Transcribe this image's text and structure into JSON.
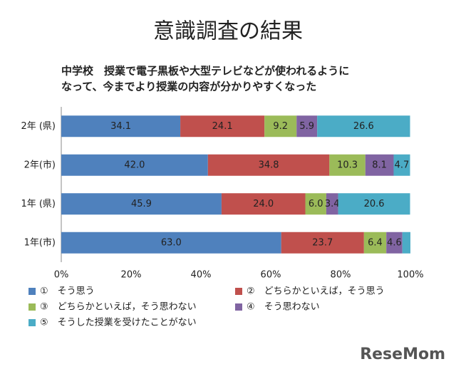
{
  "chart_data": {
    "type": "stacked-bar-horizontal",
    "title": "意識調査の結果",
    "subtitle": [
      "中学校　授業で電子黒板や大型テレビなどが使われるように",
      "なって、今までより授業の内容が分かりやすくなった"
    ],
    "categories": [
      "2年 (県)",
      "2年(市)",
      "1年 (県)",
      "1年(市)"
    ],
    "series": [
      {
        "name": "①　そう思う",
        "color": "#4f81bd",
        "values": [
          34.1,
          42.0,
          45.9,
          63.0
        ],
        "value_labels": [
          "34.1",
          "42.0",
          "45.9",
          "63.0"
        ]
      },
      {
        "name": "②　どちらかといえば，そう思う",
        "color": "#c0504d",
        "values": [
          24.1,
          34.8,
          24.0,
          23.7
        ],
        "value_labels": [
          "24.1",
          "34.8",
          "24.0",
          "23.7"
        ]
      },
      {
        "name": "③　どちらかといえば，そう思わない",
        "color": "#9bbb59",
        "values": [
          9.2,
          10.3,
          6.0,
          6.4
        ],
        "value_labels": [
          "9.2",
          "10.3",
          "6.0",
          "6.4"
        ]
      },
      {
        "name": "④　そう思わない",
        "color": "#8064a2",
        "values": [
          5.9,
          8.1,
          3.4,
          4.6
        ],
        "value_labels": [
          "5.9",
          "8.1",
          "3.4",
          "4.6"
        ]
      },
      {
        "name": "⑤　そうした授業を受けたことがない",
        "color": "#4bacc6",
        "values": [
          26.6,
          4.7,
          20.6,
          2.3
        ],
        "value_labels": [
          "26.6",
          "4.7",
          "20.6",
          null
        ]
      }
    ],
    "xlim": [
      0,
      100
    ],
    "xticks": [
      {
        "value": 0,
        "label": "0%"
      },
      {
        "value": 20,
        "label": "20%"
      },
      {
        "value": 40,
        "label": "40%"
      },
      {
        "value": 60,
        "label": "60%"
      },
      {
        "value": 80,
        "label": "80%"
      },
      {
        "value": 100,
        "label": "100%"
      }
    ],
    "grid": false,
    "watermark": "ReseMom"
  }
}
